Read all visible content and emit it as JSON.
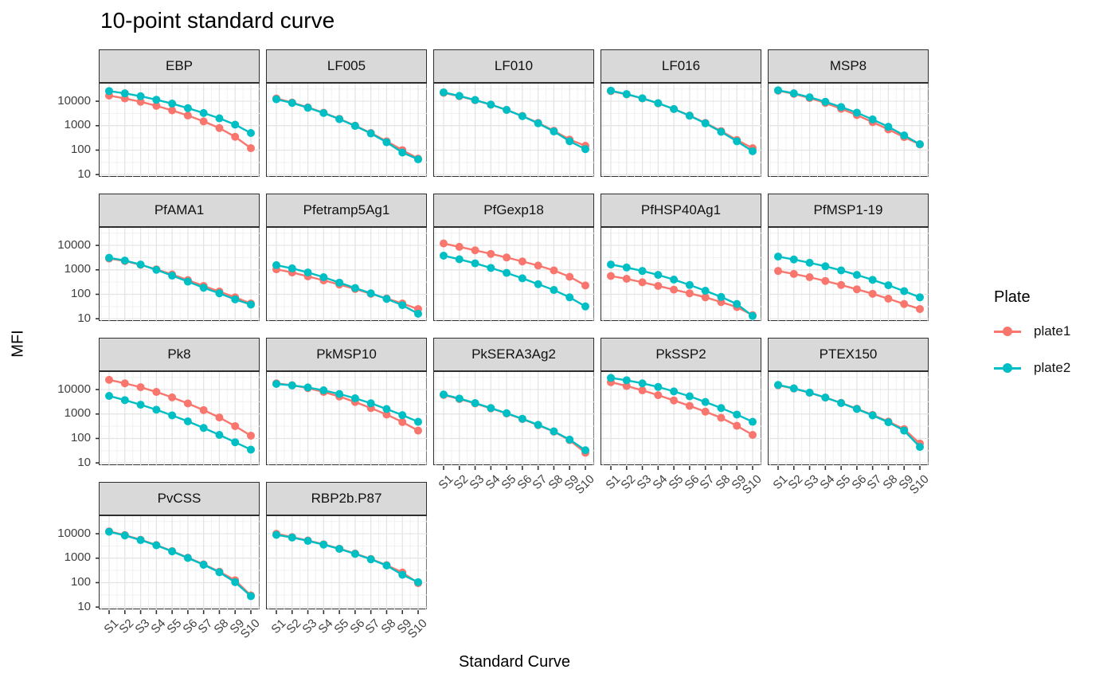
{
  "title": "10-point standard curve",
  "axes": {
    "x_label": "Standard Curve",
    "y_label": "MFI",
    "x_ticks": [
      "S1",
      "S2",
      "S3",
      "S4",
      "S5",
      "S6",
      "S7",
      "S8",
      "S9",
      "S10"
    ],
    "y_ticks": [
      "10000",
      "1000",
      "100",
      "10"
    ],
    "y_tick_values": [
      10000,
      1000,
      100,
      10
    ]
  },
  "legend": {
    "title": "Plate",
    "entries": [
      {
        "label": "plate1",
        "color": "#F8766D"
      },
      {
        "label": "plate2",
        "color": "#00BFC4"
      }
    ]
  },
  "colors": {
    "plate1": "#F8766D",
    "plate2": "#00BFC4",
    "strip_bg": "#d9d9d9",
    "panel_border": "#2e2e2e",
    "grid_major": "#e3e3e3",
    "grid_minor": "#f1f1f1",
    "tick_text": "#404040"
  },
  "chart_data": {
    "type": "line",
    "x": [
      "S1",
      "S2",
      "S3",
      "S4",
      "S5",
      "S6",
      "S7",
      "S8",
      "S9",
      "S10"
    ],
    "y_scale": "log10",
    "ylim": [
      7.5,
      52000
    ],
    "grid": true,
    "legend_position": "right",
    "facet_columns": 5,
    "facets": [
      {
        "name": "EBP",
        "series": [
          {
            "name": "plate1",
            "values": [
              17000,
              13000,
              9500,
              6500,
              4200,
              2600,
              1500,
              800,
              350,
              120
            ]
          },
          {
            "name": "plate2",
            "values": [
              26000,
              21000,
              16000,
              11500,
              8000,
              5200,
              3300,
              2000,
              1100,
              500
            ]
          }
        ]
      },
      {
        "name": "LF005",
        "series": [
          {
            "name": "plate1",
            "values": [
              13000,
              8800,
              5600,
              3400,
              1900,
              1000,
              500,
              230,
              100,
              45
            ]
          },
          {
            "name": "plate2",
            "values": [
              12000,
              8500,
              5400,
              3300,
              1850,
              980,
              480,
              210,
              80,
              42
            ]
          }
        ]
      },
      {
        "name": "LF010",
        "series": [
          {
            "name": "plate1",
            "values": [
              22000,
              16000,
              11000,
              7200,
              4400,
              2500,
              1300,
              620,
              270,
              150
            ]
          },
          {
            "name": "plate2",
            "values": [
              23000,
              16500,
              11200,
              7300,
              4400,
              2450,
              1250,
              580,
              230,
              110
            ]
          }
        ]
      },
      {
        "name": "LF016",
        "series": [
          {
            "name": "plate1",
            "values": [
              26000,
              19000,
              13000,
              8200,
              4800,
              2600,
              1300,
              600,
              260,
              120
            ]
          },
          {
            "name": "plate2",
            "values": [
              27000,
              19500,
              13200,
              8300,
              4800,
              2550,
              1250,
              560,
              230,
              90
            ]
          }
        ]
      },
      {
        "name": "MSP8",
        "series": [
          {
            "name": "plate1",
            "values": [
              27000,
              20000,
              13500,
              8500,
              4900,
              2700,
              1400,
              700,
              340,
              170
            ]
          },
          {
            "name": "plate2",
            "values": [
              28000,
              21000,
              14500,
              9500,
              5800,
              3400,
              1800,
              900,
              400,
              175
            ]
          }
        ]
      },
      {
        "name": "PfAMA1",
        "series": [
          {
            "name": "plate1",
            "values": [
              2900,
              2300,
              1600,
              1050,
              650,
              380,
              220,
              130,
              75,
              42
            ]
          },
          {
            "name": "plate2",
            "values": [
              3100,
              2400,
              1650,
              1000,
              580,
              330,
              185,
              110,
              62,
              38
            ]
          }
        ]
      },
      {
        "name": "Pfetramp5Ag1",
        "series": [
          {
            "name": "plate1",
            "values": [
              1050,
              780,
              540,
              370,
              250,
              165,
              105,
              68,
              42,
              25
            ]
          },
          {
            "name": "plate2",
            "values": [
              1550,
              1150,
              780,
              500,
              300,
              180,
              110,
              65,
              36,
              16
            ]
          }
        ]
      },
      {
        "name": "PfGexp18",
        "series": [
          {
            "name": "plate1",
            "values": [
              12000,
              8700,
              6300,
              4500,
              3200,
              2200,
              1500,
              950,
              520,
              230
            ]
          },
          {
            "name": "plate2",
            "values": [
              3800,
              2700,
              1850,
              1200,
              750,
              450,
              260,
              150,
              75,
              32
            ]
          }
        ]
      },
      {
        "name": "PfHSP40Ag1",
        "series": [
          {
            "name": "plate1",
            "values": [
              560,
              430,
              310,
              220,
              155,
              110,
              75,
              48,
              30,
              14
            ]
          },
          {
            "name": "plate2",
            "values": [
              1650,
              1250,
              900,
              620,
              400,
              240,
              140,
              78,
              40,
              13
            ]
          }
        ]
      },
      {
        "name": "PfMSP1-19",
        "series": [
          {
            "name": "plate1",
            "values": [
              900,
              680,
              500,
              350,
              240,
              160,
              105,
              66,
              40,
              25
            ]
          },
          {
            "name": "plate2",
            "values": [
              3500,
              2650,
              1950,
              1400,
              950,
              620,
              390,
              235,
              135,
              75
            ]
          }
        ]
      },
      {
        "name": "Pk8",
        "series": [
          {
            "name": "plate1",
            "values": [
              25000,
              18000,
              12500,
              8000,
              4800,
              2700,
              1450,
              720,
              320,
              130
            ]
          },
          {
            "name": "plate2",
            "values": [
              5500,
              3700,
              2400,
              1500,
              880,
              500,
              270,
              140,
              70,
              35
            ]
          }
        ]
      },
      {
        "name": "PkMSP10",
        "series": [
          {
            "name": "plate1",
            "values": [
              18000,
              15000,
              11500,
              8000,
              5200,
              3100,
              1750,
              950,
              470,
              210
            ]
          },
          {
            "name": "plate2",
            "values": [
              17000,
              14800,
              12200,
              9300,
              6600,
              4400,
              2750,
              1600,
              900,
              480
            ]
          }
        ]
      },
      {
        "name": "PkSERA3Ag2",
        "series": [
          {
            "name": "plate1",
            "values": [
              6000,
              4100,
              2700,
              1700,
              1050,
              620,
              350,
              190,
              85,
              26
            ]
          },
          {
            "name": "plate2",
            "values": [
              6300,
              4300,
              2800,
              1750,
              1080,
              640,
              360,
              195,
              90,
              33
            ]
          }
        ]
      },
      {
        "name": "PkSSP2",
        "series": [
          {
            "name": "plate1",
            "values": [
              20000,
              14000,
              9300,
              5900,
              3600,
              2150,
              1250,
              700,
              330,
              140
            ]
          },
          {
            "name": "plate2",
            "values": [
              30000,
              24000,
              18000,
              12800,
              8400,
              5300,
              3100,
              1750,
              950,
              480
            ]
          }
        ]
      },
      {
        "name": "PTEX150",
        "series": [
          {
            "name": "plate1",
            "values": [
              15000,
              11000,
              7400,
              4700,
              2850,
              1650,
              920,
              490,
              240,
              62
            ]
          },
          {
            "name": "plate2",
            "values": [
              15500,
              11200,
              7500,
              4700,
              2800,
              1600,
              880,
              460,
              210,
              45
            ]
          }
        ]
      },
      {
        "name": "PvCSS",
        "series": [
          {
            "name": "plate1",
            "values": [
              12500,
              8800,
              5700,
              3450,
              1950,
              1050,
              560,
              280,
              125,
              30
            ]
          },
          {
            "name": "plate2",
            "values": [
              12000,
              8500,
              5500,
              3350,
              1900,
              1020,
              540,
              265,
              105,
              28
            ]
          }
        ]
      },
      {
        "name": "RBP2b.P87",
        "series": [
          {
            "name": "plate1",
            "values": [
              10000,
              7300,
              5300,
              3700,
              2450,
              1550,
              930,
              520,
              260,
              95
            ]
          },
          {
            "name": "plate2",
            "values": [
              9000,
              7000,
              5100,
              3600,
              2400,
              1500,
              900,
              500,
              210,
              105
            ]
          }
        ]
      }
    ]
  }
}
